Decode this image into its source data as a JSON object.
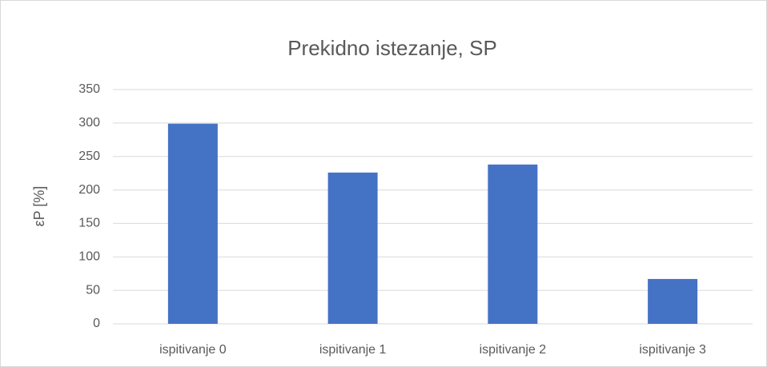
{
  "chart_data": {
    "type": "bar",
    "title": "Prekidno istezanje, SP",
    "ylabel": "εP [%]",
    "categories": [
      "ispitivanje 0",
      "ispitivanje 1",
      "ispitivanje 2",
      "ispitivanje 3"
    ],
    "values": [
      299,
      226,
      238,
      67
    ],
    "color": "#4472c4",
    "ylim": [
      0,
      350
    ],
    "yticks": [
      0,
      50,
      100,
      150,
      200,
      250,
      300,
      350
    ],
    "grid": true
  }
}
